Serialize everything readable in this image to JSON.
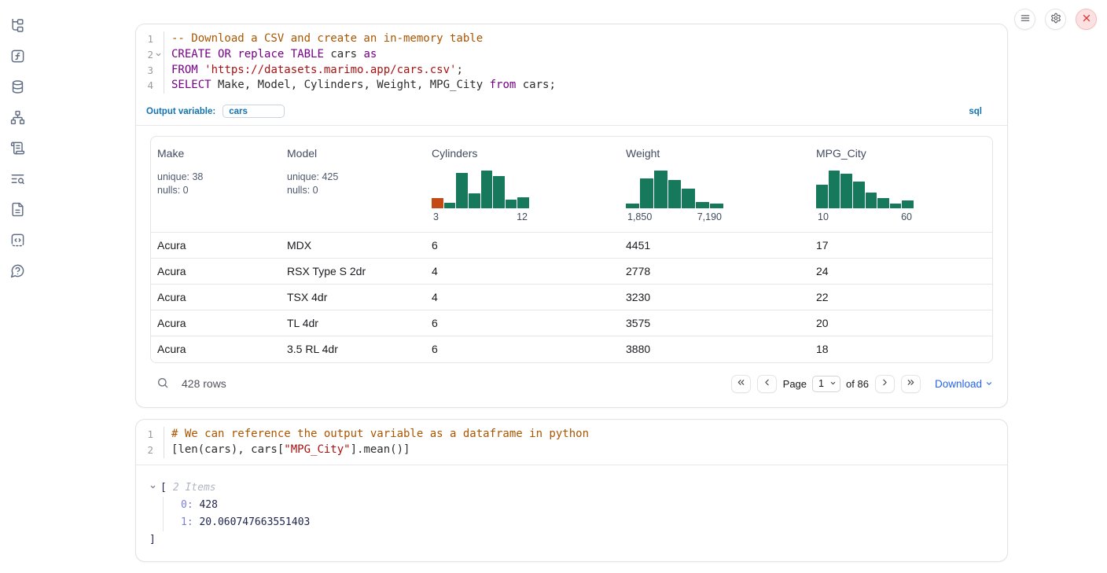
{
  "colors": {
    "histogram_green": "#17795c",
    "histogram_orange": "#c44a15",
    "accent_blue": "#1273af",
    "link_blue": "#2563eb"
  },
  "sidebar": {
    "items": [
      {
        "id": "file-tree"
      },
      {
        "id": "function"
      },
      {
        "id": "database"
      },
      {
        "id": "dependency-graph"
      },
      {
        "id": "scratchpad"
      },
      {
        "id": "logs"
      },
      {
        "id": "documentation"
      },
      {
        "id": "snippets"
      },
      {
        "id": "help"
      }
    ]
  },
  "window_controls": [
    {
      "id": "menu"
    },
    {
      "id": "settings"
    },
    {
      "id": "shutdown"
    }
  ],
  "sql_cell": {
    "lines": [
      {
        "num": "1",
        "fold": false,
        "tokens": [
          {
            "type": "comment",
            "text": "-- Download a CSV and create an in-memory table"
          }
        ]
      },
      {
        "num": "2",
        "fold": true,
        "tokens": [
          {
            "type": "keyword",
            "text": "CREATE"
          },
          {
            "type": "plain",
            "text": " "
          },
          {
            "type": "keyword",
            "text": "OR"
          },
          {
            "type": "plain",
            "text": " "
          },
          {
            "type": "keyword",
            "text": "replace"
          },
          {
            "type": "plain",
            "text": " "
          },
          {
            "type": "keyword",
            "text": "TABLE"
          },
          {
            "type": "plain",
            "text": " cars "
          },
          {
            "type": "keyword",
            "text": "as"
          }
        ]
      },
      {
        "num": "3",
        "fold": false,
        "tokens": [
          {
            "type": "keyword",
            "text": "FROM"
          },
          {
            "type": "plain",
            "text": " "
          },
          {
            "type": "string",
            "text": "'https://datasets.marimo.app/cars.csv'"
          },
          {
            "type": "plain",
            "text": ";"
          }
        ]
      },
      {
        "num": "4",
        "fold": false,
        "tokens": [
          {
            "type": "keyword",
            "text": "SELECT"
          },
          {
            "type": "plain",
            "text": " Make, Model, Cylinders, Weight, MPG_City "
          },
          {
            "type": "keyword",
            "text": "from"
          },
          {
            "type": "plain",
            "text": " cars;"
          }
        ]
      }
    ],
    "output_variable_label": "Output variable:",
    "output_variable_value": "cars",
    "language_badge": "sql"
  },
  "table": {
    "columns": [
      {
        "name": "Make",
        "stats": [
          "unique: 38",
          "nulls: 0"
        ]
      },
      {
        "name": "Model",
        "stats": [
          "unique: 425",
          "nulls: 0"
        ]
      },
      {
        "name": "Cylinders",
        "histogram": {
          "min_label": "3",
          "max_label": "12",
          "orange_index": 0,
          "bars": [
            0.28,
            0.14,
            0.95,
            0.41,
            1,
            0.86,
            0.24,
            0.3
          ]
        }
      },
      {
        "name": "Weight",
        "histogram": {
          "min_label": "1,850",
          "max_label": "7,190",
          "orange_index": -1,
          "bars": [
            0.12,
            0.8,
            1,
            0.76,
            0.52,
            0.18,
            0.13
          ]
        }
      },
      {
        "name": "MPG_City",
        "histogram": {
          "min_label": "10",
          "max_label": "60",
          "orange_index": -1,
          "bars": [
            0.63,
            1,
            0.93,
            0.71,
            0.42,
            0.28,
            0.12,
            0.21
          ]
        }
      }
    ],
    "rows": [
      [
        "Acura",
        "MDX",
        "6",
        "4451",
        "17"
      ],
      [
        "Acura",
        "RSX Type S 2dr",
        "4",
        "2778",
        "24"
      ],
      [
        "Acura",
        "TSX 4dr",
        "4",
        "3230",
        "22"
      ],
      [
        "Acura",
        "TL 4dr",
        "6",
        "3575",
        "20"
      ],
      [
        "Acura",
        "3.5 RL 4dr",
        "6",
        "3880",
        "18"
      ]
    ],
    "footer": {
      "row_count": "428 rows",
      "page_label": "Page",
      "page_value": "1",
      "total_pages_label": "of 86",
      "download_label": "Download"
    }
  },
  "python_cell": {
    "lines": [
      {
        "num": "1",
        "fold": false,
        "tokens": [
          {
            "type": "comment",
            "text": "# We can reference the output variable as a dataframe in python"
          }
        ]
      },
      {
        "num": "2",
        "fold": false,
        "tokens": [
          {
            "type": "plain",
            "text": "[len(cars), cars["
          },
          {
            "type": "string",
            "text": "\"MPG_City\""
          },
          {
            "type": "plain",
            "text": "].mean()]"
          }
        ]
      }
    ]
  },
  "tree_output": {
    "open_bracket": "[",
    "items_label": "2 Items",
    "entries": [
      {
        "key": "0",
        "value": "428"
      },
      {
        "key": "1",
        "value": "20.060747663551403"
      }
    ],
    "close_bracket": "]"
  }
}
